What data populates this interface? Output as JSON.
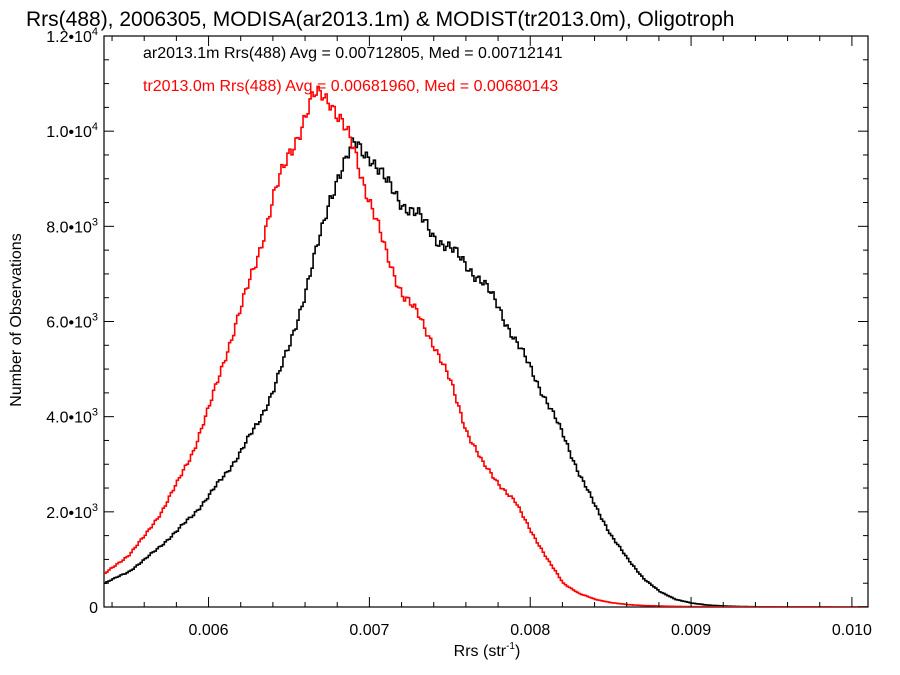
{
  "chart_data": {
    "type": "line",
    "title": "Rrs(488), 2006305, MODISA(ar2013.1m) & MODIST(tr2013.0m), Oligotroph",
    "xlabel_main": "Rrs (str",
    "xlabel_exp": "-1",
    "xlabel_close": ")",
    "ylabel": "Number of Observations",
    "xlim": [
      0.00535,
      0.0101
    ],
    "ylim": [
      0,
      12000
    ],
    "x_ticks": [
      0.006,
      0.007,
      0.008,
      0.009,
      0.01
    ],
    "x_tick_labels": [
      "0.006",
      "0.007",
      "0.008",
      "0.009",
      "0.010"
    ],
    "y_ticks": [
      0,
      2000,
      4000,
      6000,
      8000,
      10000,
      12000
    ],
    "y_tick_labels": [
      {
        "mant": "0",
        "exp": ""
      },
      {
        "mant": "2.0•10",
        "exp": "3"
      },
      {
        "mant": "4.0•10",
        "exp": "3"
      },
      {
        "mant": "6.0•10",
        "exp": "3"
      },
      {
        "mant": "8.0•10",
        "exp": "3"
      },
      {
        "mant": "1.0•10",
        "exp": "4"
      },
      {
        "mant": "1.2•10",
        "exp": "4"
      }
    ],
    "legend": [
      {
        "text": "ar2013.1m Rrs(488) Avg = 0.00712805, Med = 0.00712141",
        "color": "#000000"
      },
      {
        "text": "tr2013.0m Rrs(488) Avg = 0.00681960, Med = 0.00680143",
        "color": "#ff0000"
      }
    ],
    "series": [
      {
        "color": "#000000",
        "x": [
          0.00535,
          0.0055,
          0.0056,
          0.0057,
          0.0058,
          0.0059,
          0.006,
          0.0061,
          0.0062,
          0.0063,
          0.0064,
          0.0065,
          0.0066,
          0.0067,
          0.00675,
          0.0068,
          0.00685,
          0.0069,
          0.00695,
          0.007,
          0.00705,
          0.0071,
          0.0072,
          0.0073,
          0.0074,
          0.0075,
          0.0076,
          0.0077,
          0.0078,
          0.0079,
          0.008,
          0.0081,
          0.0082,
          0.0083,
          0.0084,
          0.0085,
          0.0086,
          0.0087,
          0.0088,
          0.0089,
          0.009,
          0.0091,
          0.0092,
          0.0093,
          0.0094,
          0.0095,
          0.0096,
          0.0097,
          0.0098,
          0.0099,
          0.0101
        ],
        "values": [
          500,
          750,
          1000,
          1300,
          1600,
          1950,
          2350,
          2800,
          3300,
          3850,
          4600,
          5500,
          6700,
          7900,
          8600,
          9100,
          9400,
          9700,
          9600,
          9500,
          9200,
          8900,
          8500,
          8200,
          7800,
          7500,
          7200,
          6800,
          6300,
          5600,
          5000,
          4300,
          3600,
          2800,
          2100,
          1500,
          1000,
          600,
          320,
          160,
          80,
          40,
          20,
          10,
          5,
          3,
          2,
          1,
          1,
          0,
          0
        ]
      },
      {
        "color": "#ff0000",
        "x": [
          0.00535,
          0.0055,
          0.0056,
          0.0057,
          0.0058,
          0.0059,
          0.006,
          0.0061,
          0.0062,
          0.0063,
          0.0064,
          0.0065,
          0.0066,
          0.00665,
          0.0067,
          0.00675,
          0.0068,
          0.0069,
          0.007,
          0.0071,
          0.0072,
          0.0073,
          0.0074,
          0.0075,
          0.0076,
          0.0077,
          0.0078,
          0.0079,
          0.008,
          0.0081,
          0.0082,
          0.0083,
          0.0084,
          0.0085,
          0.0086,
          0.0087,
          0.0088,
          0.0089,
          0.009,
          0.0091,
          0.0092,
          0.0093,
          0.0094,
          0.0095,
          0.0096,
          0.0097,
          0.0098,
          0.0099,
          0.0101
        ],
        "values": [
          700,
          1100,
          1500,
          2000,
          2600,
          3300,
          4200,
          5300,
          6300,
          7400,
          8600,
          9600,
          10300,
          10700,
          10800,
          10700,
          10300,
          9600,
          8500,
          7400,
          6600,
          6100,
          5500,
          4700,
          3700,
          3000,
          2600,
          2200,
          1600,
          1000,
          500,
          280,
          160,
          90,
          50,
          30,
          20,
          12,
          8,
          6,
          4,
          3,
          2,
          2,
          1,
          1,
          1,
          0,
          0
        ]
      }
    ]
  }
}
